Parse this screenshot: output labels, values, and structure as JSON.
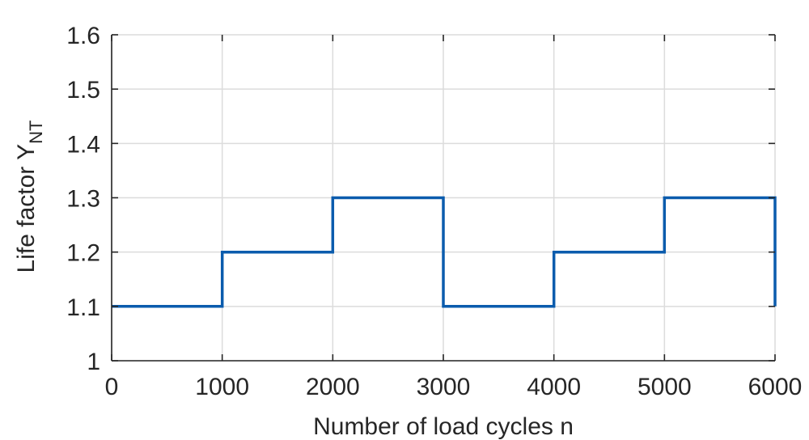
{
  "chart_data": {
    "type": "line",
    "step": true,
    "xlabel": "Number of load cycles n",
    "ylabel": "Life factor Y",
    "ylabel_subscript": "NT",
    "xlim": [
      0,
      6000
    ],
    "ylim": [
      1,
      1.6
    ],
    "xticks": [
      "0",
      "1000",
      "2000",
      "3000",
      "4000",
      "5000",
      "6000"
    ],
    "yticks": [
      "1",
      "1.1",
      "1.2",
      "1.3",
      "1.4",
      "1.5",
      "1.6"
    ],
    "grid": true,
    "series": [
      {
        "color": "#0b5cad",
        "x": [
          0,
          1000,
          1000,
          2000,
          2000,
          3000,
          3000,
          4000,
          4000,
          5000,
          5000,
          6000,
          6000
        ],
        "y": [
          1.1,
          1.1,
          1.2,
          1.2,
          1.3,
          1.3,
          1.1,
          1.1,
          1.2,
          1.2,
          1.3,
          1.3,
          1.1
        ]
      }
    ]
  }
}
